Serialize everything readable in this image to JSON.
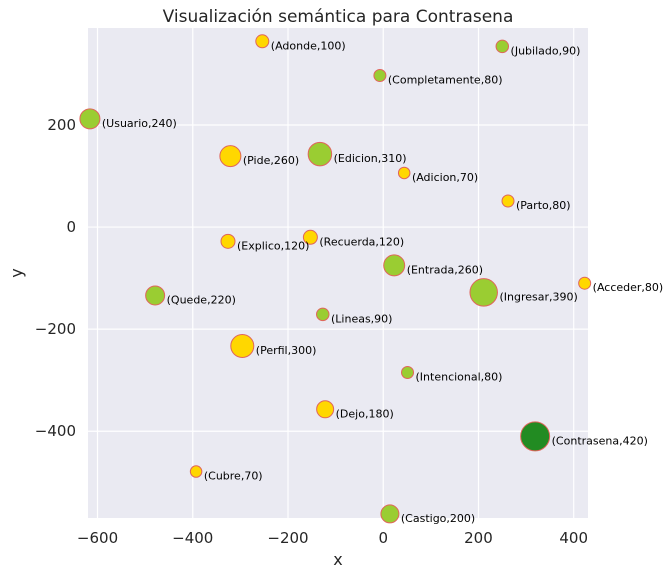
{
  "chart_data": {
    "type": "scatter",
    "title": "Visualización semántica para Contrasena",
    "xlabel": "x",
    "ylabel": "y",
    "xlim": [
      -620,
      430
    ],
    "ylim": [
      -570,
      390
    ],
    "xticks": [
      -600,
      -400,
      -200,
      0,
      200,
      400
    ],
    "yticks": [
      -400,
      -200,
      0,
      200
    ],
    "xtick_labels": [
      "−600",
      "−400",
      "−200",
      "0",
      "200",
      "400"
    ],
    "ytick_labels": [
      "−400",
      "−200",
      "0",
      "200"
    ],
    "grid": true,
    "points": [
      {
        "x": -254,
        "y": 364,
        "value": 100,
        "label": "(Adonde,100)",
        "color": "#ffd700"
      },
      {
        "x": 250,
        "y": 354,
        "value": 90,
        "label": "(Jubilado,90)",
        "color": "#9acd32"
      },
      {
        "x": -7,
        "y": 297,
        "value": 80,
        "label": "(Completamente,80)",
        "color": "#9acd32"
      },
      {
        "x": -616,
        "y": 212,
        "value": 240,
        "label": "(Usuario,240)",
        "color": "#9acd32"
      },
      {
        "x": -321,
        "y": 139,
        "value": 260,
        "label": "(Pide,260)",
        "color": "#ffd700"
      },
      {
        "x": -133,
        "y": 143,
        "value": 310,
        "label": "(Edicion,310)",
        "color": "#9acd32"
      },
      {
        "x": 44,
        "y": 106,
        "value": 70,
        "label": "(Adicion,70)",
        "color": "#ffd700"
      },
      {
        "x": 262,
        "y": 51,
        "value": 80,
        "label": "(Parto,80)",
        "color": "#ffd700"
      },
      {
        "x": -326,
        "y": -28,
        "value": 120,
        "label": "(Explico,120)",
        "color": "#ffd700"
      },
      {
        "x": -153,
        "y": -20,
        "value": 120,
        "label": "(Recuerda,120)",
        "color": "#ffd700"
      },
      {
        "x": 23,
        "y": -75,
        "value": 260,
        "label": "(Entrada,260)",
        "color": "#9acd32"
      },
      {
        "x": 423,
        "y": -110,
        "value": 80,
        "label": "(Acceder,80)",
        "color": "#ffd700"
      },
      {
        "x": -479,
        "y": -134,
        "value": 220,
        "label": "(Quede,220)",
        "color": "#9acd32"
      },
      {
        "x": 211,
        "y": -128,
        "value": 390,
        "label": "(Ingresar,390)",
        "color": "#9acd32"
      },
      {
        "x": -127,
        "y": -171,
        "value": 90,
        "label": "(Lineas,90)",
        "color": "#9acd32"
      },
      {
        "x": -296,
        "y": -233,
        "value": 300,
        "label": "(Perfil,300)",
        "color": "#ffd700"
      },
      {
        "x": 51,
        "y": -285,
        "value": 80,
        "label": "(Intencional,80)",
        "color": "#9acd32"
      },
      {
        "x": -122,
        "y": -357,
        "value": 180,
        "label": "(Dejo,180)",
        "color": "#ffd700"
      },
      {
        "x": 319,
        "y": -410,
        "value": 420,
        "label": "(Contrasena,420)",
        "color": "#228b22"
      },
      {
        "x": -393,
        "y": -479,
        "value": 70,
        "label": "(Cubre,70)",
        "color": "#ffd700"
      },
      {
        "x": 14,
        "y": -562,
        "value": 200,
        "label": "(Castigo,200)",
        "color": "#9acd32"
      }
    ],
    "marker_edge_color": "#e0655c",
    "plot_background": "#eaeaf2",
    "grid_color": "#ffffff"
  }
}
